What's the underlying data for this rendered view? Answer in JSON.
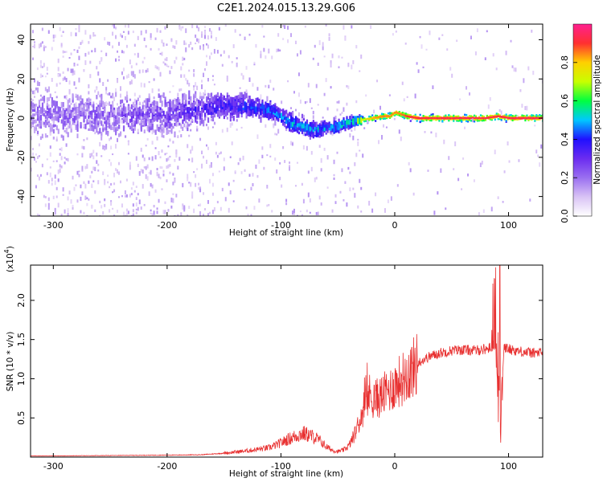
{
  "chart_data": [
    {
      "type": "heatmap",
      "title": "C2E1.2024.015.13.29.G06",
      "xlabel": "Height of straight line (km)",
      "ylabel": "Frequency (Hz)",
      "xlim": [
        -320,
        130
      ],
      "ylim": [
        -50,
        48
      ],
      "xticks": [
        -300,
        -200,
        -100,
        0,
        100
      ],
      "yticks": [
        -40,
        -20,
        0,
        20,
        40
      ],
      "colorbar": {
        "label": "Normalized spectral amplitude",
        "range": [
          0.0,
          1.0
        ],
        "ticks": [
          0.0,
          0.2,
          0.4,
          0.6,
          0.8
        ],
        "colors": [
          "#ffffff",
          "#d9c3f5",
          "#9a6ff0",
          "#6b2cf0",
          "#2010ff",
          "#00c8ff",
          "#00ff40",
          "#c8ff00",
          "#ffd000",
          "#ff3030",
          "#ff2090"
        ]
      },
      "ridge": {
        "x": [
          -320,
          -250,
          -200,
          -160,
          -130,
          -110,
          -100,
          -90,
          -80,
          -70,
          -60,
          -50,
          -40,
          -30,
          -20,
          -10,
          -5,
          0,
          5,
          10,
          20,
          50,
          80,
          90,
          100,
          130
        ],
        "frequency": [
          2,
          1,
          2,
          6,
          6,
          4,
          1,
          -3,
          -5,
          -6,
          -5,
          -4,
          -2,
          -1,
          0,
          1,
          1,
          3,
          2,
          1,
          0,
          0,
          0,
          1,
          0,
          0
        ],
        "spread": [
          14,
          13,
          12,
          9,
          7,
          6,
          5,
          5,
          5,
          4,
          4,
          4,
          3,
          2,
          2,
          2,
          2,
          2,
          2,
          2,
          2,
          2,
          2,
          2,
          2,
          2
        ],
        "peak_amplitude": [
          0.2,
          0.22,
          0.28,
          0.35,
          0.42,
          0.45,
          0.48,
          0.5,
          0.5,
          0.5,
          0.45,
          0.5,
          0.55,
          0.7,
          0.82,
          0.85,
          0.85,
          0.85,
          0.85,
          0.9,
          0.92,
          0.93,
          0.93,
          0.92,
          0.93,
          0.93
        ]
      }
    },
    {
      "type": "line",
      "xlabel": "Height of straight line (km)",
      "ylabel": "SNR (10 * v/v)",
      "yscale_label": "(x10",
      "yscale_exponent": "4",
      "xlim": [
        -320,
        130
      ],
      "ylim": [
        0,
        24500
      ],
      "xticks": [
        -300,
        -200,
        -100,
        0,
        100
      ],
      "yticks": [
        5000,
        10000,
        15000,
        20000
      ],
      "ytick_labels": [
        "0.5",
        "1.0",
        "1.5",
        "2.0"
      ],
      "color": "#e83030",
      "series": [
        {
          "x": [
            -320,
            -300,
            -250,
            -200,
            -170,
            -150,
            -130,
            -110,
            -100,
            -95,
            -90,
            -85,
            -80,
            -75,
            -70,
            -65,
            -60,
            -55,
            -50,
            -45,
            -40,
            -35,
            -30,
            -25,
            -22,
            -20,
            -15,
            -10,
            -5,
            0,
            5,
            10,
            15,
            20,
            30,
            40,
            50,
            60,
            70,
            80,
            85,
            88,
            90,
            92,
            93,
            94,
            96,
            100,
            110,
            120,
            130
          ],
          "y": [
            150,
            150,
            200,
            250,
            300,
            500,
            800,
            1200,
            1800,
            2200,
            2500,
            2800,
            3000,
            2800,
            2500,
            2000,
            1300,
            900,
            700,
            900,
            1500,
            3000,
            5000,
            7000,
            8000,
            7500,
            7500,
            8000,
            8500,
            9200,
            9800,
            10500,
            11200,
            12000,
            12800,
            13300,
            13600,
            13700,
            13600,
            13800,
            14000,
            14300,
            14500,
            8000,
            2000,
            9000,
            14000,
            13800,
            13500,
            13300,
            13300
          ]
        }
      ]
    }
  ]
}
